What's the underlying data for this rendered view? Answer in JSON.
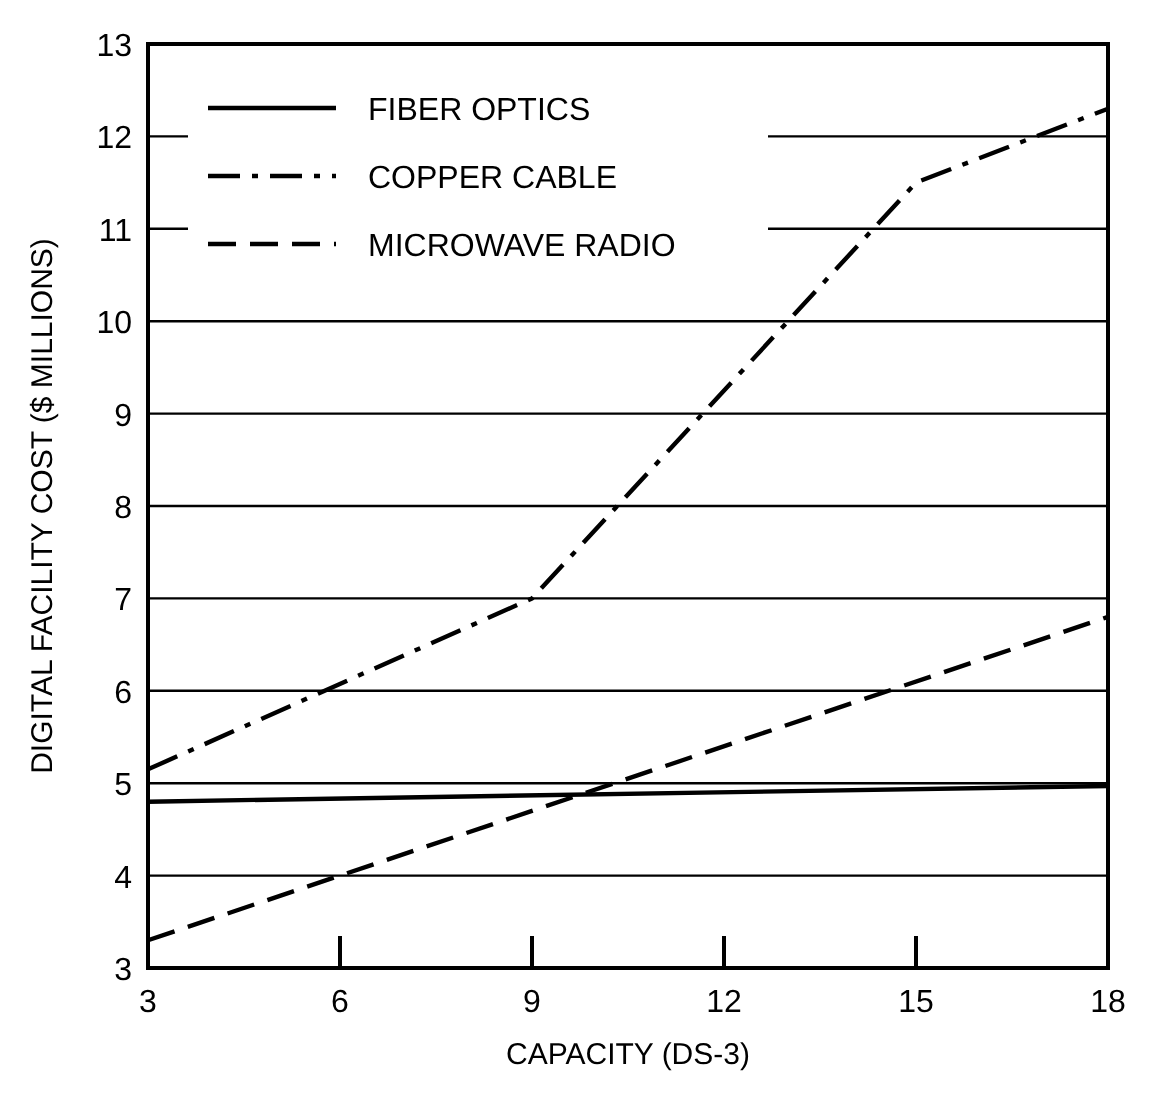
{
  "chart_data": {
    "type": "line",
    "xlabel": "CAPACITY (DS-3)",
    "ylabel": "DIGITAL FACILITY COST ($ MILLIONS)",
    "xlim": [
      3,
      18
    ],
    "xticks": [
      3,
      6,
      9,
      12,
      15,
      18
    ],
    "ylim": [
      3,
      13
    ],
    "yticks": [
      3,
      4,
      5,
      6,
      7,
      8,
      9,
      10,
      11,
      12,
      13
    ],
    "grid": "y",
    "legend": "top left",
    "series": [
      {
        "name": "FIBER OPTICS",
        "color": "#000000",
        "line_style": "solid",
        "x": [
          3,
          18
        ],
        "values": [
          4.8,
          4.97
        ]
      },
      {
        "name": "COPPER CABLE",
        "color": "#000000",
        "line_style": "dashdot",
        "x": [
          3,
          9,
          15,
          18
        ],
        "values": [
          5.15,
          7.0,
          11.5,
          12.3
        ]
      },
      {
        "name": "MICROWAVE RADIO",
        "color": "#000000",
        "line_style": "dashed",
        "x": [
          3,
          18
        ],
        "values": [
          3.3,
          6.8
        ]
      }
    ]
  }
}
